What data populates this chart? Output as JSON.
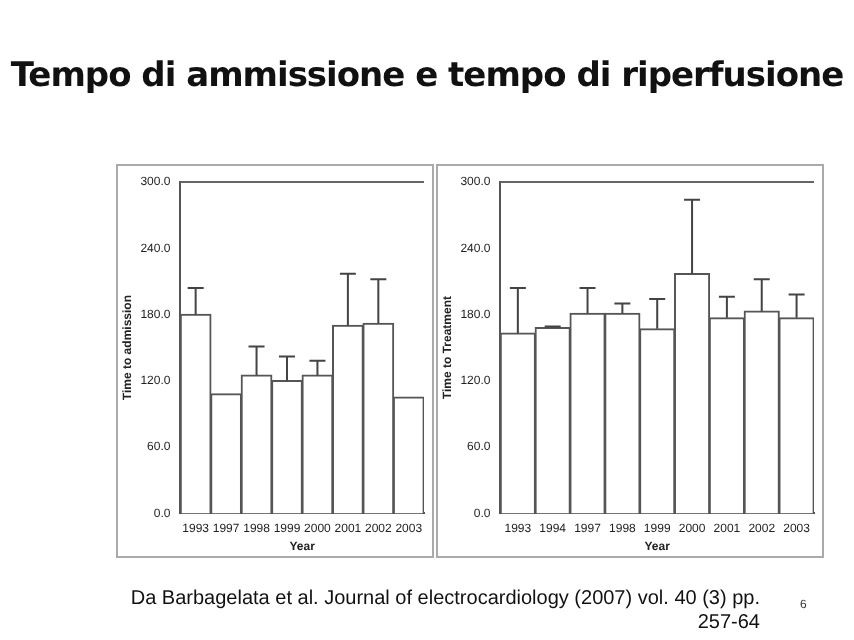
{
  "chart_data": [
    {
      "type": "bar",
      "title": "Tempo di ammissione e tempo di riperfusione",
      "xlabel": "Year",
      "ylabel": "Time to admission",
      "categories": [
        "1993",
        "1997",
        "1998",
        "1999",
        "2000",
        "2001",
        "2002",
        "2003"
      ],
      "color": "#ffffff",
      "values": [
        180,
        108,
        125,
        120,
        125,
        170,
        172,
        105
      ],
      "errors": [
        [
          180,
          204
        ],
        null,
        [
          125,
          151
        ],
        [
          120,
          142
        ],
        [
          125,
          138
        ],
        [
          170,
          217
        ],
        [
          172,
          212
        ],
        null
      ],
      "ylim": [
        0,
        300
      ],
      "yticks": [
        {
          "value": 0,
          "label": "0.0"
        },
        {
          "value": 60,
          "label": "60.0"
        },
        {
          "value": 120,
          "label": "120.0"
        },
        {
          "value": 180,
          "label": "180.0"
        },
        {
          "value": 240,
          "label": "240.0"
        },
        {
          "value": 300,
          "label": "300.0"
        }
      ],
      "grid": false,
      "legend": false
    },
    {
      "type": "bar",
      "xlabel": "Year",
      "ylabel": "Time to Treatment",
      "categories": [
        "1993",
        "1994",
        "1997",
        "1998",
        "1999",
        "2000",
        "2001",
        "2002",
        "2003"
      ],
      "color": "#ffffff",
      "values": [
        163,
        168,
        181,
        181,
        167,
        217,
        177,
        183,
        177
      ],
      "errors": [
        [
          163,
          204
        ],
        [
          168,
          169
        ],
        [
          181,
          204
        ],
        [
          181,
          190
        ],
        [
          167,
          194
        ],
        [
          217,
          284
        ],
        [
          177,
          196
        ],
        [
          183,
          212
        ],
        [
          177,
          198
        ]
      ],
      "ylim": [
        0,
        300
      ],
      "yticks": [
        {
          "value": 0,
          "label": "0.0"
        },
        {
          "value": 60,
          "label": "60.0"
        },
        {
          "value": 120,
          "label": "120.0"
        },
        {
          "value": 180,
          "label": "180.0"
        },
        {
          "value": 240,
          "label": "240.0"
        },
        {
          "value": 300,
          "label": "300.0"
        }
      ],
      "grid": false,
      "legend": false,
      "annotations": [
        "Da Barbagelata et al.  Journal of electrocardiology (2007) vol. 40 (3) pp. 257-64",
        "6"
      ]
    }
  ]
}
